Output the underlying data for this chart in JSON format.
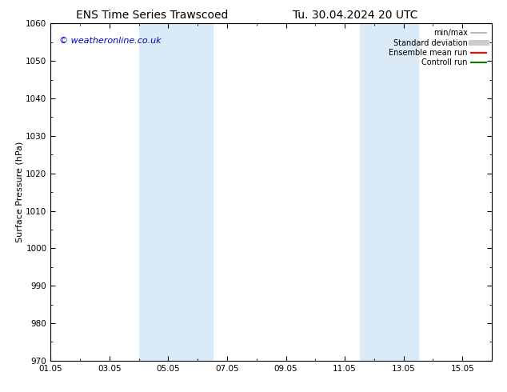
{
  "title_left": "ENS Time Series Trawscoed",
  "title_right": "Tu. 30.04.2024 20 UTC",
  "ylabel": "Surface Pressure (hPa)",
  "ylim": [
    970,
    1060
  ],
  "yticks": [
    970,
    980,
    990,
    1000,
    1010,
    1020,
    1030,
    1040,
    1050,
    1060
  ],
  "xlim_start": 0.0,
  "xlim_end": 15.0,
  "xtick_labels": [
    "01.05",
    "03.05",
    "05.05",
    "07.05",
    "09.05",
    "11.05",
    "13.05",
    "15.05"
  ],
  "xtick_positions": [
    0,
    2,
    4,
    6,
    8,
    10,
    12,
    14
  ],
  "shaded_bands": [
    {
      "x_start": 3.0,
      "x_end": 5.5
    },
    {
      "x_start": 10.5,
      "x_end": 12.5
    }
  ],
  "shaded_color": "#daeaf7",
  "watermark": "© weatheronline.co.uk",
  "watermark_color": "#0000bb",
  "background_color": "#ffffff",
  "axes_background": "#ffffff",
  "legend_items": [
    {
      "label": "min/max",
      "color": "#aaaaaa",
      "lw": 1.2,
      "style": "solid"
    },
    {
      "label": "Standard deviation",
      "color": "#cccccc",
      "lw": 5,
      "style": "solid"
    },
    {
      "label": "Ensemble mean run",
      "color": "#ff0000",
      "lw": 1.5,
      "style": "solid"
    },
    {
      "label": "Controll run",
      "color": "#008000",
      "lw": 1.5,
      "style": "solid"
    }
  ],
  "title_fontsize": 10,
  "tick_fontsize": 7.5,
  "ylabel_fontsize": 8,
  "watermark_fontsize": 8
}
